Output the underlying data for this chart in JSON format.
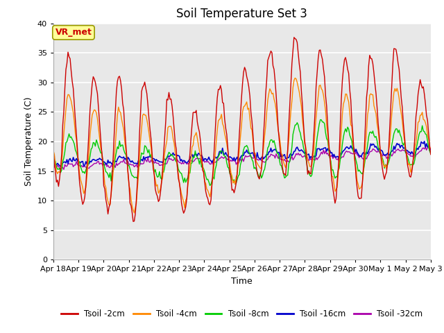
{
  "title": "Soil Temperature Set 3",
  "xlabel": "Time",
  "ylabel": "Soil Temperature (C)",
  "ylim": [
    0,
    40
  ],
  "yticks": [
    0,
    5,
    10,
    15,
    20,
    25,
    30,
    35,
    40
  ],
  "xlabels": [
    "Apr 18",
    "Apr 19",
    "Apr 20",
    "Apr 21",
    "Apr 22",
    "Apr 23",
    "Apr 24",
    "Apr 25",
    "Apr 26",
    "Apr 27",
    "Apr 28",
    "Apr 29",
    "Apr 30",
    "May 1",
    "May 2",
    "May 3"
  ],
  "colors": {
    "Tsoil -2cm": "#cc0000",
    "Tsoil -4cm": "#ff8800",
    "Tsoil -8cm": "#00cc00",
    "Tsoil -16cm": "#0000cc",
    "Tsoil -32cm": "#aa00aa"
  },
  "annotation_text": "VR_met",
  "annotation_color": "#cc0000",
  "annotation_bg": "#ffff99",
  "annotation_border": "#999900",
  "background_color": "#e8e8e8",
  "grid_color": "#ffffff",
  "title_fontsize": 12,
  "figsize": [
    6.4,
    4.8
  ],
  "dpi": 100
}
